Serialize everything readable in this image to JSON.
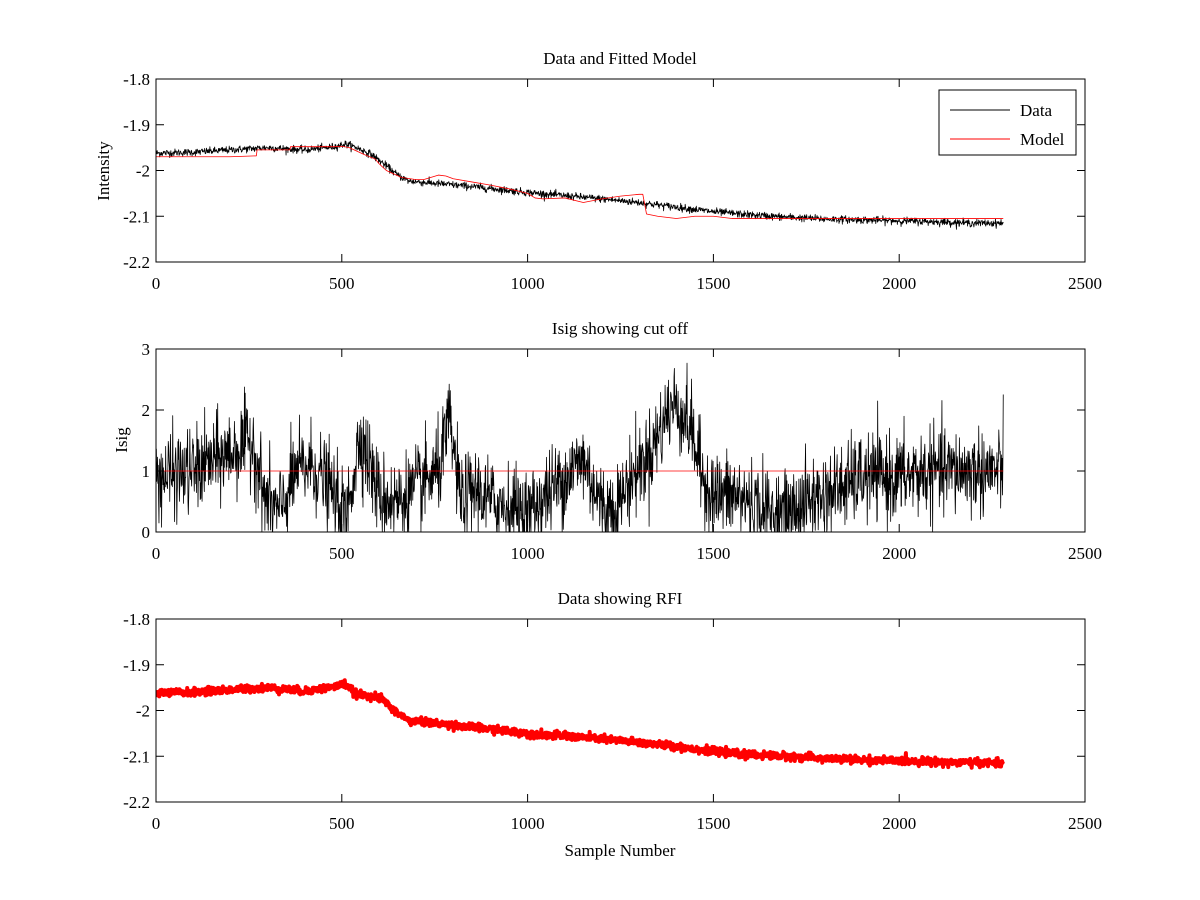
{
  "chart_data": [
    {
      "type": "line",
      "title": "Data and Fitted Model",
      "xlabel": "",
      "ylabel": "Intensity",
      "xlim": [
        0,
        2500
      ],
      "ylim": [
        -2.2,
        -1.8
      ],
      "xticks": [
        0,
        500,
        1000,
        1500,
        2000,
        2500
      ],
      "yticks": [
        -2.2,
        -2.1,
        -2,
        -1.9,
        -1.8
      ],
      "xtick_labels": [
        "0",
        "500",
        "1000",
        "1500",
        "2000",
        "2500"
      ],
      "ytick_labels": [
        "-2.2",
        "-2.1",
        "-2",
        "-1.9",
        "-1.8"
      ],
      "grid": false,
      "legend": {
        "position": "top-right",
        "entries": [
          "Data",
          "Model"
        ]
      },
      "series": [
        {
          "name": "Data",
          "color": "#000000",
          "noise": 0.004,
          "x": [
            0,
            100,
            200,
            300,
            400,
            480,
            510,
            540,
            580,
            620,
            650,
            680,
            750,
            850,
            1000,
            1100,
            1200,
            1300,
            1400,
            1500,
            1600,
            1700,
            1800,
            1900,
            2000,
            2100,
            2200,
            2280
          ],
          "y": [
            -1.962,
            -1.96,
            -1.955,
            -1.95,
            -1.955,
            -1.948,
            -1.942,
            -1.95,
            -1.965,
            -1.99,
            -2.01,
            -2.023,
            -2.028,
            -2.035,
            -2.048,
            -2.055,
            -2.062,
            -2.07,
            -2.08,
            -2.09,
            -2.097,
            -2.102,
            -2.106,
            -2.108,
            -2.11,
            -2.112,
            -2.115,
            -2.115
          ]
        },
        {
          "name": "Model",
          "color": "#ff0000",
          "noise": 0,
          "x": [
            0,
            100,
            200,
            270,
            272,
            360,
            362,
            460,
            480,
            500,
            520,
            560,
            590,
            600,
            620,
            660,
            700,
            720,
            740,
            760,
            780,
            800,
            850,
            900,
            950,
            1000,
            1020,
            1040,
            1100,
            1150,
            1200,
            1250,
            1300,
            1310,
            1320,
            1350,
            1400,
            1450,
            1500,
            1550,
            1600,
            2280
          ],
          "y": [
            -1.97,
            -1.97,
            -1.97,
            -1.968,
            -1.955,
            -1.955,
            -1.948,
            -1.948,
            -1.948,
            -1.947,
            -1.95,
            -1.965,
            -1.975,
            -1.985,
            -2.0,
            -2.015,
            -2.02,
            -2.02,
            -2.015,
            -2.01,
            -2.012,
            -2.018,
            -2.025,
            -2.032,
            -2.04,
            -2.05,
            -2.06,
            -2.062,
            -2.06,
            -2.07,
            -2.062,
            -2.056,
            -2.052,
            -2.052,
            -2.095,
            -2.1,
            -2.105,
            -2.1,
            -2.1,
            -2.105,
            -2.105,
            -2.105
          ]
        }
      ]
    },
    {
      "type": "line",
      "title": "Isig showing cut off",
      "xlabel": "",
      "ylabel": "Isig",
      "xlim": [
        0,
        2500
      ],
      "ylim": [
        0,
        3
      ],
      "xticks": [
        0,
        500,
        1000,
        1500,
        2000,
        2500
      ],
      "yticks": [
        0,
        1,
        2,
        3
      ],
      "xtick_labels": [
        "0",
        "500",
        "1000",
        "1500",
        "2000",
        "2500"
      ],
      "ytick_labels": [
        "0",
        "1",
        "2",
        "3"
      ],
      "grid": false,
      "series": [
        {
          "color": "#000000",
          "noise": 0.35,
          "clip_min": 0,
          "x": [
            0,
            100,
            200,
            260,
            290,
            330,
            380,
            420,
            470,
            510,
            550,
            600,
            650,
            700,
            760,
            790,
            820,
            860,
            900,
            960,
            1000,
            1050,
            1100,
            1150,
            1200,
            1240,
            1280,
            1330,
            1380,
            1400,
            1440,
            1470,
            1500,
            1550,
            1600,
            1650,
            1700,
            1750,
            1800,
            1900,
            2000,
            2100,
            2200,
            2280
          ],
          "y": [
            0.9,
            1.0,
            1.3,
            1.5,
            0.6,
            0.3,
            1.0,
            1.1,
            0.7,
            0.2,
            1.6,
            0.6,
            0.5,
            0.7,
            1.0,
            1.8,
            0.5,
            0.7,
            0.5,
            0.4,
            0.3,
            0.6,
            0.9,
            1.2,
            0.4,
            0.4,
            0.9,
            1.3,
            2.0,
            2.1,
            1.7,
            0.9,
            0.6,
            0.6,
            0.5,
            0.3,
            0.3,
            0.5,
            0.6,
            0.9,
            0.9,
            1.0,
            1.0,
            1.0
          ]
        },
        {
          "color": "#ff0000",
          "noise": 0,
          "x": [
            0,
            2280
          ],
          "y": [
            1,
            1
          ]
        }
      ]
    },
    {
      "type": "line",
      "title": "Data showing RFI",
      "xlabel": "Sample Number",
      "ylabel": "",
      "xlim": [
        0,
        2500
      ],
      "ylim": [
        -2.2,
        -1.8
      ],
      "xticks": [
        0,
        500,
        1000,
        1500,
        2000,
        2500
      ],
      "yticks": [
        -2.2,
        -2.1,
        -2,
        -1.9,
        -1.8
      ],
      "xtick_labels": [
        "0",
        "500",
        "1000",
        "1500",
        "2000",
        "2500"
      ],
      "ytick_labels": [
        "-2.2",
        "-2.1",
        "-2",
        "-1.9",
        "-1.8"
      ],
      "grid": false,
      "series": [
        {
          "color": "#ff0000",
          "noise": 0.004,
          "linewidth": 4,
          "x": [
            0,
            100,
            200,
            300,
            400,
            480,
            510,
            540,
            580,
            610,
            640,
            680,
            750,
            850,
            1000,
            1100,
            1200,
            1300,
            1400,
            1500,
            1600,
            1700,
            1800,
            1900,
            2000,
            2100,
            2200,
            2280
          ],
          "y": [
            -1.962,
            -1.96,
            -1.955,
            -1.95,
            -1.958,
            -1.948,
            -1.942,
            -1.965,
            -1.968,
            -1.975,
            -2.0,
            -2.022,
            -2.028,
            -2.036,
            -2.05,
            -2.056,
            -2.062,
            -2.07,
            -2.078,
            -2.09,
            -2.097,
            -2.1,
            -2.105,
            -2.108,
            -2.11,
            -2.112,
            -2.114,
            -2.115
          ]
        }
      ]
    }
  ]
}
